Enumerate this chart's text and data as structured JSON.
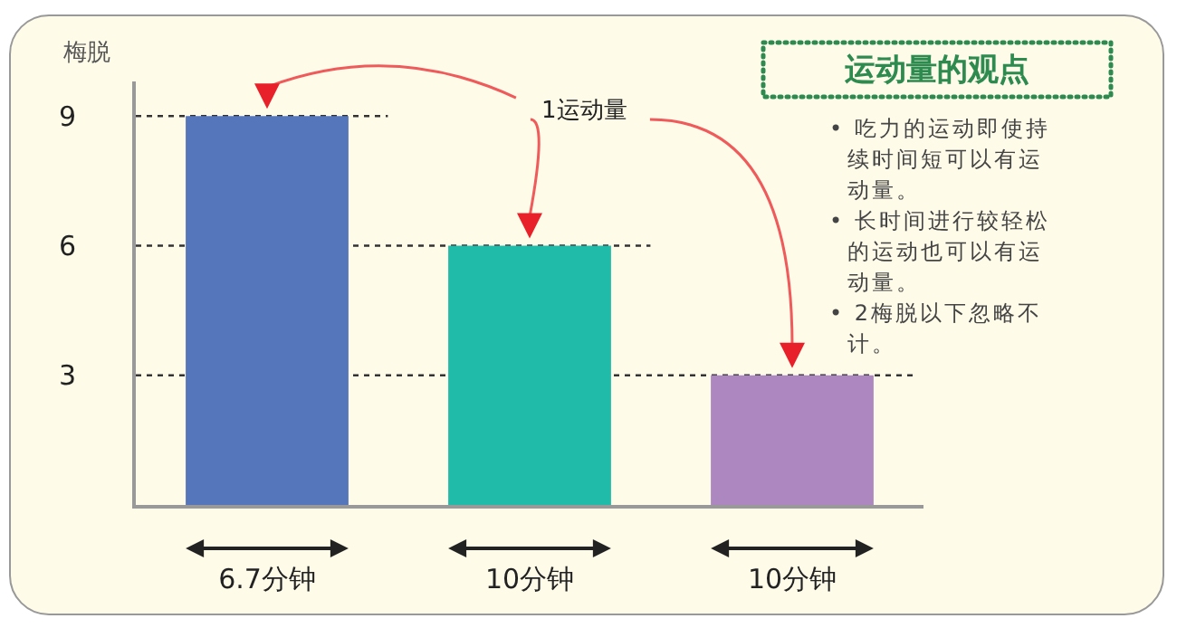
{
  "chart_data": {
    "type": "bar",
    "title": "运动量的观点",
    "ylabel": "梅脱",
    "categories": [
      "6.7分钟",
      "10分钟",
      "10分钟"
    ],
    "values": [
      9,
      6,
      3
    ],
    "colors": [
      "#5676bc",
      "#21bba9",
      "#ad88c0"
    ],
    "ylim": [
      0,
      9.8
    ],
    "yticks": [
      3,
      6,
      9
    ],
    "grid": false,
    "ref_lines": [
      {
        "axis": "y",
        "value": 9,
        "line_style": "dotted",
        "color": "#333333"
      },
      {
        "axis": "y",
        "value": 6,
        "line_style": "dotted",
        "color": "#333333"
      },
      {
        "axis": "y",
        "value": 3,
        "line_style": "dotted",
        "color": "#333333"
      }
    ],
    "annotations": [
      "1运动量",
      "• 吃力的运动即使持续时间短可以有运动量。",
      "• 长时间进行较轻松的运动也可以有运动量。",
      "• 2梅脱以下忽略不计。"
    ]
  }
}
